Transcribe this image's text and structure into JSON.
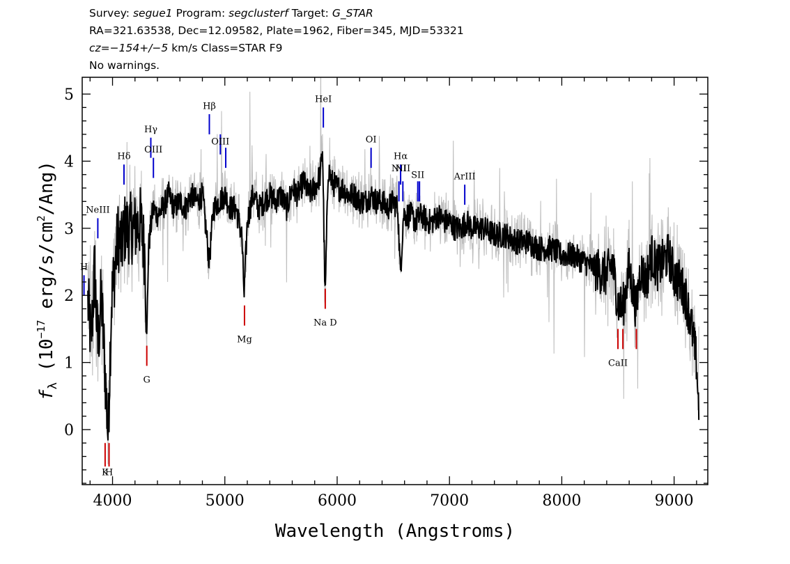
{
  "header": {
    "line1": {
      "survey_label": "Survey:",
      "survey": "segue1",
      "program_label": "Program:",
      "program": "segclusterf",
      "target_label": "Target:",
      "target": "G_STAR"
    },
    "line2": "RA=321.63538, Dec=12.09582, Plate=1962, Fiber=345, MJD=53321",
    "line3": {
      "cz": "cz=−154+/−5",
      "rest": " km/s Class=STAR F9"
    },
    "line4": "No warnings."
  },
  "chart_data": {
    "type": "line",
    "title": "",
    "xlabel": "Wavelength (Angstroms)",
    "ylabel_parts": {
      "pre": "f",
      "sub": "λ",
      "mid": " (10",
      "sup": "−17",
      "mid2": " erg/s/cm",
      "sup2": "2",
      "post": "/Ang)"
    },
    "xlim": [
      3730,
      9300
    ],
    "ylim": [
      -0.82,
      5.25
    ],
    "x_ticks": [
      4000,
      5000,
      6000,
      7000,
      8000,
      9000
    ],
    "y_ticks": [
      0,
      1,
      2,
      3,
      4,
      5
    ],
    "series": [
      {
        "role": "flux",
        "color": "#000000",
        "points": [
          [
            3780,
            1.9
          ],
          [
            3810,
            1.3
          ],
          [
            3840,
            2.4
          ],
          [
            3870,
            1.2
          ],
          [
            3900,
            2.0
          ],
          [
            3930,
            1.0
          ],
          [
            3960,
            -0.1
          ],
          [
            3990,
            1.9
          ],
          [
            4020,
            2.4
          ],
          [
            4050,
            2.9
          ],
          [
            4080,
            2.7
          ],
          [
            4110,
            3.0
          ],
          [
            4150,
            3.0
          ],
          [
            4200,
            3.0
          ],
          [
            4250,
            3.1
          ],
          [
            4290,
            2.6
          ],
          [
            4305,
            1.3
          ],
          [
            4320,
            2.7
          ],
          [
            4360,
            3.3
          ],
          [
            4400,
            3.2
          ],
          [
            4450,
            3.3
          ],
          [
            4500,
            3.5
          ],
          [
            4550,
            3.3
          ],
          [
            4600,
            3.4
          ],
          [
            4650,
            3.3
          ],
          [
            4700,
            3.5
          ],
          [
            4750,
            3.4
          ],
          [
            4800,
            3.5
          ],
          [
            4861,
            2.5
          ],
          [
            4900,
            3.3
          ],
          [
            4950,
            3.4
          ],
          [
            5000,
            3.5
          ],
          [
            5050,
            3.3
          ],
          [
            5100,
            3.3
          ],
          [
            5150,
            2.9
          ],
          [
            5172,
            2.0
          ],
          [
            5200,
            3.1
          ],
          [
            5250,
            3.5
          ],
          [
            5300,
            3.3
          ],
          [
            5350,
            3.4
          ],
          [
            5400,
            3.5
          ],
          [
            5450,
            3.4
          ],
          [
            5500,
            3.5
          ],
          [
            5550,
            3.3
          ],
          [
            5600,
            3.6
          ],
          [
            5650,
            3.5
          ],
          [
            5700,
            3.7
          ],
          [
            5750,
            3.5
          ],
          [
            5800,
            3.6
          ],
          [
            5850,
            3.8
          ],
          [
            5870,
            4.2
          ],
          [
            5893,
            1.9
          ],
          [
            5920,
            3.9
          ],
          [
            5950,
            3.7
          ],
          [
            6000,
            3.6
          ],
          [
            6050,
            3.6
          ],
          [
            6100,
            3.5
          ],
          [
            6150,
            3.5
          ],
          [
            6200,
            3.4
          ],
          [
            6250,
            3.4
          ],
          [
            6300,
            3.5
          ],
          [
            6350,
            3.4
          ],
          [
            6400,
            3.4
          ],
          [
            6450,
            3.3
          ],
          [
            6500,
            3.4
          ],
          [
            6540,
            3.3
          ],
          [
            6563,
            2.3
          ],
          [
            6590,
            3.2
          ],
          [
            6650,
            3.2
          ],
          [
            6700,
            3.1
          ],
          [
            6750,
            3.2
          ],
          [
            6800,
            3.1
          ],
          [
            6850,
            3.1
          ],
          [
            6900,
            3.2
          ],
          [
            6950,
            3.1
          ],
          [
            7000,
            3.1
          ],
          [
            7050,
            3.0
          ],
          [
            7100,
            3.0
          ],
          [
            7150,
            3.1
          ],
          [
            7200,
            3.0
          ],
          [
            7300,
            3.0
          ],
          [
            7400,
            2.9
          ],
          [
            7500,
            2.9
          ],
          [
            7600,
            2.8
          ],
          [
            7700,
            2.8
          ],
          [
            7800,
            2.7
          ],
          [
            7900,
            2.7
          ],
          [
            8000,
            2.6
          ],
          [
            8100,
            2.6
          ],
          [
            8200,
            2.5
          ],
          [
            8300,
            2.4
          ],
          [
            8400,
            2.3
          ],
          [
            8450,
            2.5
          ],
          [
            8498,
            1.9
          ],
          [
            8542,
            1.8
          ],
          [
            8600,
            2.4
          ],
          [
            8662,
            1.8
          ],
          [
            8700,
            2.4
          ],
          [
            8750,
            2.2
          ],
          [
            8800,
            2.6
          ],
          [
            8850,
            2.4
          ],
          [
            8900,
            2.5
          ],
          [
            8950,
            2.6
          ],
          [
            9000,
            2.3
          ],
          [
            9050,
            2.2
          ],
          [
            9100,
            2.0
          ],
          [
            9150,
            1.6
          ],
          [
            9200,
            1.0
          ],
          [
            9220,
            0.3
          ]
        ]
      },
      {
        "role": "error",
        "color": "#bfbfbf"
      }
    ],
    "lines": [
      {
        "label": "H",
        "wl": 3746,
        "color": "#0000cc",
        "y0": 2.0,
        "y1": 2.3,
        "label_y": 2.38
      },
      {
        "label": "NeIII",
        "wl": 3869,
        "color": "#0000cc",
        "y0": 2.85,
        "y1": 3.15,
        "label_y": 3.23
      },
      {
        "label": "K",
        "wl": 3934,
        "color": "#cc0000",
        "y0": -0.55,
        "y1": -0.2,
        "label_y": -0.68
      },
      {
        "label": "H",
        "wl": 3969,
        "color": "#cc0000",
        "y0": -0.55,
        "y1": -0.2,
        "label_y": -0.68
      },
      {
        "label": "Hδ",
        "wl": 4102,
        "color": "#0000cc",
        "y0": 3.65,
        "y1": 3.95,
        "label_y": 4.03
      },
      {
        "label": "G",
        "wl": 4305,
        "color": "#cc0000",
        "y0": 0.95,
        "y1": 1.25,
        "label_y": 0.7
      },
      {
        "label": "Hγ",
        "wl": 4341,
        "color": "#0000cc",
        "y0": 4.05,
        "y1": 4.35,
        "label_y": 4.43
      },
      {
        "label": "OIII",
        "wl": 4364,
        "color": "#0000cc",
        "y0": 3.75,
        "y1": 4.05,
        "label_y": 4.13
      },
      {
        "label": "Hβ",
        "wl": 4862,
        "color": "#0000cc",
        "y0": 4.4,
        "y1": 4.7,
        "label_y": 4.78
      },
      {
        "label": "OIII",
        "wl": 4960,
        "color": "#0000cc",
        "y0": 4.1,
        "y1": 4.4,
        "label_y": 4.25
      },
      {
        "label": "",
        "wl": 5008,
        "color": "#0000cc",
        "y0": 3.9,
        "y1": 4.2,
        "label_y": null
      },
      {
        "label": "Mg",
        "wl": 5175,
        "color": "#cc0000",
        "y0": 1.55,
        "y1": 1.85,
        "label_y": 1.3
      },
      {
        "label": "HeI",
        "wl": 5877,
        "color": "#0000cc",
        "y0": 4.5,
        "y1": 4.8,
        "label_y": 4.88
      },
      {
        "label": "Na D",
        "wl": 5894,
        "color": "#cc0000",
        "y0": 1.8,
        "y1": 2.1,
        "label_y": 1.55
      },
      {
        "label": "OI",
        "wl": 6302,
        "color": "#0000cc",
        "y0": 3.9,
        "y1": 4.2,
        "label_y": 4.28
      },
      {
        "label": "NII",
        "wl": 6550,
        "color": "#0000cc",
        "y0": 3.4,
        "y1": 3.7,
        "label_y": 3.85
      },
      {
        "label": "Hα",
        "wl": 6565,
        "color": "#0000cc",
        "y0": 3.65,
        "y1": 3.95,
        "label_y": 4.03
      },
      {
        "label": "NII",
        "wl": 6585,
        "color": "#0000cc",
        "y0": 3.4,
        "y1": 3.7,
        "label_y": 3.85
      },
      {
        "label": "SII",
        "wl": 6718,
        "color": "#0000cc",
        "y0": 3.4,
        "y1": 3.7,
        "label_y": 3.75
      },
      {
        "label": "",
        "wl": 6733,
        "color": "#0000cc",
        "y0": 3.4,
        "y1": 3.7,
        "label_y": null
      },
      {
        "label": "ArIII",
        "wl": 7136,
        "color": "#0000cc",
        "y0": 3.35,
        "y1": 3.65,
        "label_y": 3.73
      },
      {
        "label": "CaII",
        "wl": 8500,
        "color": "#cc0000",
        "y0": 1.2,
        "y1": 1.5,
        "label_y": 0.95
      },
      {
        "label": "",
        "wl": 8544,
        "color": "#cc0000",
        "y0": 1.2,
        "y1": 1.5,
        "label_y": null
      },
      {
        "label": "",
        "wl": 8664,
        "color": "#cc0000",
        "y0": 1.2,
        "y1": 1.5,
        "label_y": null
      }
    ]
  }
}
